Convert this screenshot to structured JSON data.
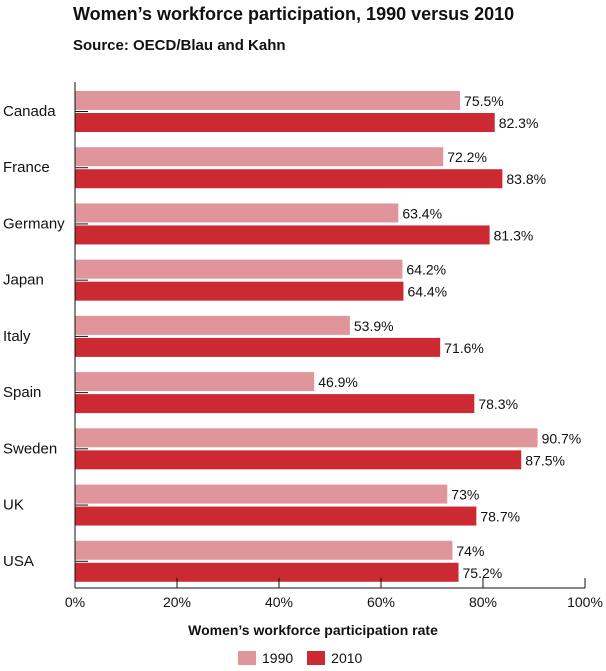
{
  "chart_data": {
    "type": "bar",
    "orientation": "horizontal",
    "title": "Women’s workforce participation, 1990 versus 2010",
    "subtitle": "Source: OECD/Blau and Kahn",
    "xlabel": "Women’s workforce participation rate",
    "ylabel": "",
    "xlim": [
      0,
      100
    ],
    "x_ticks": [
      "0%",
      "20%",
      "40%",
      "60%",
      "80%",
      "100%"
    ],
    "grid": false,
    "legend_position": "bottom",
    "categories": [
      "Canada",
      "France",
      "Germany",
      "Japan",
      "Italy",
      "Spain",
      "Sweden",
      "UK",
      "USA"
    ],
    "series": [
      {
        "name": "1990",
        "color": "#e0959a",
        "values": [
          75.5,
          72.2,
          63.4,
          64.2,
          53.9,
          46.9,
          90.7,
          73,
          74
        ],
        "labels": [
          "75.5%",
          "72.2%",
          "63.4%",
          "64.2%",
          "53.9%",
          "46.9%",
          "90.7%",
          "73%",
          "74%"
        ]
      },
      {
        "name": "2010",
        "color": "#cc2a32",
        "values": [
          82.3,
          83.8,
          81.3,
          64.4,
          71.6,
          78.3,
          87.5,
          78.7,
          75.2
        ],
        "labels": [
          "82.3%",
          "83.8%",
          "81.3%",
          "64.4%",
          "71.6%",
          "78.3%",
          "87.5%",
          "78.7%",
          "75.2%"
        ]
      }
    ]
  }
}
